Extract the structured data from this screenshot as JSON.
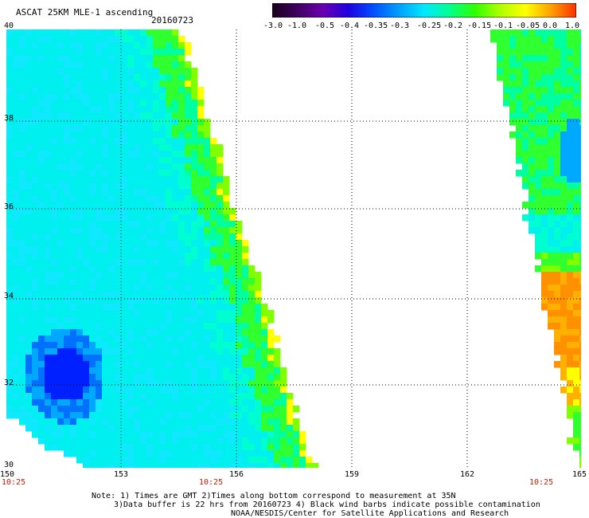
{
  "header": {
    "title": "ASCAT 25KM MLE-1 ascending",
    "date": "20160723"
  },
  "colorbar": {
    "labels": [
      "-3.0",
      "-1.0",
      "-0.5",
      "-0.4",
      "-0.35",
      "-0.3",
      "-0.25",
      "-0.2",
      "-0.15",
      "-0.1",
      "-0.05",
      "0.0",
      "1.0"
    ],
    "colors": [
      "#1a001a",
      "#400060",
      "#6a00b0",
      "#2000e0",
      "#0050ff",
      "#00a0ff",
      "#00e8ff",
      "#00ff90",
      "#30ff00",
      "#b0ff00",
      "#ffff00",
      "#ffa000",
      "#ff3000"
    ]
  },
  "axes": {
    "lat_labels": [
      "40",
      "38",
      "36",
      "34",
      "32",
      "30"
    ],
    "lon_labels": [
      "150",
      "153",
      "156",
      "159",
      "162",
      "165"
    ],
    "time_labels": [
      "10:25",
      "10:25",
      "10:25"
    ]
  },
  "notes": {
    "line1": "Note: 1) Times are GMT 2)Times along bottom correspond to measurement at 35N",
    "line2": "3)Data buffer is 22 hrs from 20160723 4) Black wind barbs indicate possible contamination",
    "line3": "NOAA/NESDIS/Center for Satellite Applications and Research"
  }
}
